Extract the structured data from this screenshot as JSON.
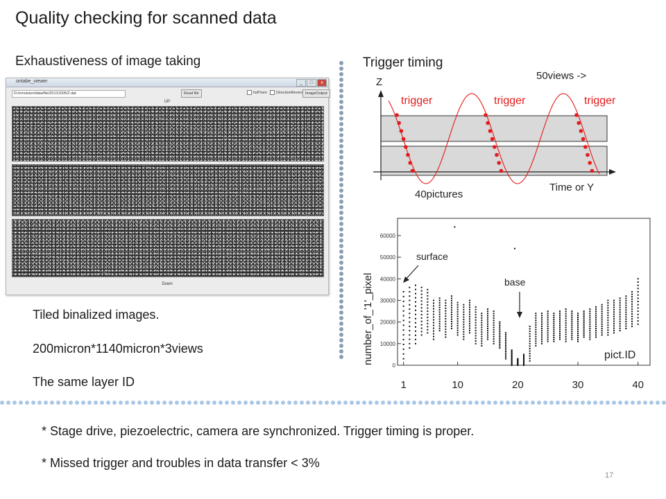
{
  "slide": {
    "title": "Quality checking for scanned data",
    "left_heading": "Exhaustiveness of image taking",
    "right_heading": "Trigger timing",
    "tiled_lines": [
      "Tiled binalized images.",
      "200micron*1140micron*3views",
      "The same layer ID"
    ],
    "notes": [
      "* Stage drive, piezoelectric, camera are synchronized. Trigger timing is proper.",
      "* Missed trigger and troubles in data transfer < 3%"
    ],
    "page_number": "17"
  },
  "viewer": {
    "title": "ontabe_viewer",
    "path": "D:/emulsion/data/file/20131005/2.dat",
    "read_button": "Read file",
    "checkboxes": [
      "hsPrism",
      "DirectionReverse"
    ],
    "image_button": "ImageOutput",
    "up_label": "UP",
    "down_label": "Down",
    "window_buttons": [
      "_",
      "□",
      "x"
    ]
  },
  "trigger_diagram": {
    "z_label": "Z",
    "time_label": "Time or Y",
    "trigger_labels": [
      "trigger",
      "trigger",
      "trigger"
    ],
    "views_label": "50views ->",
    "pictures_label": "40pictures",
    "colors": {
      "trigger": "#e31b1b",
      "band": "#d9d9d9"
    }
  },
  "chart_data": {
    "type": "scatter",
    "title": "",
    "xlabel": "pict.ID",
    "ylabel": "number_of_'1'_pixel",
    "x_ticks": [
      "1",
      "10",
      "20",
      "30",
      "40"
    ],
    "y_ticks": [
      "0",
      "10000",
      "20000",
      "30000",
      "40000",
      "50000",
      "60000"
    ],
    "xlim": [
      0,
      42
    ],
    "ylim": [
      0,
      68000
    ],
    "annotations": [
      "surface",
      "base"
    ],
    "series": [
      {
        "ranges": [
          {
            "x": 1,
            "min": 3000,
            "max": 34000
          },
          {
            "x": 2,
            "min": 8000,
            "max": 36000
          },
          {
            "x": 3,
            "min": 10000,
            "max": 37000
          },
          {
            "x": 4,
            "min": 14000,
            "max": 36000
          },
          {
            "x": 5,
            "min": 15000,
            "max": 35000
          },
          {
            "x": 6,
            "min": 12000,
            "max": 30000
          },
          {
            "x": 7,
            "min": 16000,
            "max": 31000
          },
          {
            "x": 8,
            "min": 13000,
            "max": 30000
          },
          {
            "x": 9,
            "min": 17000,
            "max": 32000
          },
          {
            "x": 10,
            "min": 14000,
            "max": 29000
          },
          {
            "x": 11,
            "min": 12000,
            "max": 28000
          },
          {
            "x": 12,
            "min": 15000,
            "max": 30000
          },
          {
            "x": 13,
            "min": 10000,
            "max": 27000
          },
          {
            "x": 14,
            "min": 9000,
            "max": 24000
          },
          {
            "x": 15,
            "min": 12000,
            "max": 26000
          },
          {
            "x": 16,
            "min": 10000,
            "max": 25000
          },
          {
            "x": 17,
            "min": 8000,
            "max": 20000
          },
          {
            "x": 18,
            "min": 3000,
            "max": 15000
          },
          {
            "x": 19,
            "min": 0,
            "max": 7000
          },
          {
            "x": 20,
            "min": 0,
            "max": 3000
          },
          {
            "x": 21,
            "min": 0,
            "max": 5000
          },
          {
            "x": 22,
            "min": 2000,
            "max": 18000
          },
          {
            "x": 23,
            "min": 9000,
            "max": 24000
          },
          {
            "x": 24,
            "min": 10000,
            "max": 24000
          },
          {
            "x": 25,
            "min": 11000,
            "max": 25000
          },
          {
            "x": 26,
            "min": 11000,
            "max": 24000
          },
          {
            "x": 27,
            "min": 12000,
            "max": 25000
          },
          {
            "x": 28,
            "min": 11000,
            "max": 26000
          },
          {
            "x": 29,
            "min": 12000,
            "max": 25000
          },
          {
            "x": 30,
            "min": 11000,
            "max": 24000
          },
          {
            "x": 31,
            "min": 13000,
            "max": 25000
          },
          {
            "x": 32,
            "min": 12000,
            "max": 26000
          },
          {
            "x": 33,
            "min": 13000,
            "max": 27000
          },
          {
            "x": 34,
            "min": 14000,
            "max": 28000
          },
          {
            "x": 35,
            "min": 14000,
            "max": 30000
          },
          {
            "x": 36,
            "min": 15000,
            "max": 30000
          },
          {
            "x": 37,
            "min": 16000,
            "max": 31000
          },
          {
            "x": 38,
            "min": 17000,
            "max": 32000
          },
          {
            "x": 39,
            "min": 18000,
            "max": 34000
          },
          {
            "x": 40,
            "min": 19000,
            "max": 40000
          }
        ],
        "outliers": [
          {
            "x": 9.5,
            "y": 64000
          },
          {
            "x": 19.5,
            "y": 54000
          }
        ]
      }
    ],
    "grid": false
  }
}
